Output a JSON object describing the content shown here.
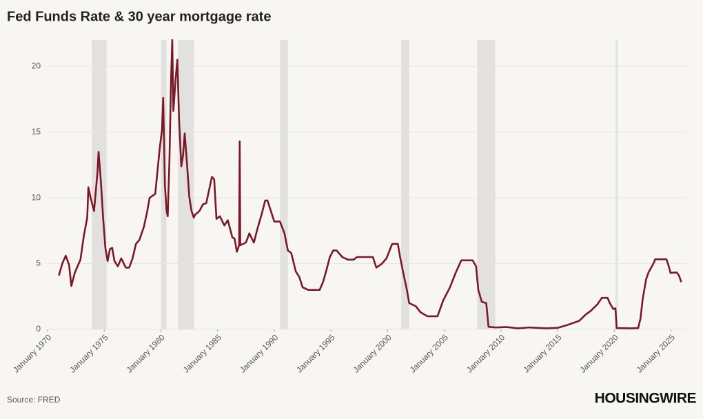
{
  "chart_data": {
    "type": "line",
    "title": "Fed Funds Rate & 30 year mortgage rate",
    "source": "Source: FRED",
    "brand": "HOUSINGWIRE",
    "color": "#7b1828",
    "grid": true,
    "recession_color": "#e2e1df",
    "recessions": [
      [
        1973.9,
        1975.2
      ],
      [
        1980.0,
        1980.5
      ],
      [
        1981.5,
        1982.9
      ],
      [
        1990.5,
        1991.2
      ],
      [
        2001.2,
        2001.9
      ],
      [
        2007.9,
        2009.5
      ],
      [
        2020.1,
        2020.3
      ]
    ],
    "xlim": [
      1970,
      2026.3
    ],
    "xticks": [
      {
        "value": 1970,
        "label": "January 1970"
      },
      {
        "value": 1975,
        "label": "January 1975"
      },
      {
        "value": 1980,
        "label": "January 1980"
      },
      {
        "value": 1985,
        "label": "January 1985"
      },
      {
        "value": 1990,
        "label": "January 1990"
      },
      {
        "value": 1995,
        "label": "January 1995"
      },
      {
        "value": 2000,
        "label": "January 2000"
      },
      {
        "value": 2005,
        "label": "January 2005"
      },
      {
        "value": 2010,
        "label": "January 2010"
      },
      {
        "value": 2015,
        "label": "January 2015"
      },
      {
        "value": 2020,
        "label": "January 2020"
      },
      {
        "value": 2025,
        "label": "January 2025"
      }
    ],
    "ylim": [
      0,
      22
    ],
    "yticks": [
      0,
      5,
      10,
      15,
      20
    ],
    "x": [
      1971.0,
      1971.3,
      1971.6,
      1971.9,
      1972.1,
      1972.4,
      1972.7,
      1972.9,
      1973.2,
      1973.5,
      1973.6,
      1973.8,
      1974.1,
      1974.4,
      1974.5,
      1974.7,
      1974.9,
      1975.1,
      1975.3,
      1975.5,
      1975.7,
      1975.9,
      1976.2,
      1976.5,
      1976.9,
      1977.2,
      1977.5,
      1977.8,
      1978.1,
      1978.5,
      1978.8,
      1979.0,
      1979.5,
      1979.9,
      1980.1,
      1980.2,
      1980.35,
      1980.5,
      1980.6,
      1980.75,
      1980.9,
      1981.0,
      1981.1,
      1981.3,
      1981.45,
      1981.6,
      1981.8,
      1981.95,
      1982.1,
      1982.3,
      1982.5,
      1982.7,
      1982.9,
      1983.0,
      1983.4,
      1983.7,
      1984.0,
      1984.5,
      1984.7,
      1984.9,
      1985.2,
      1985.6,
      1985.9,
      1986.3,
      1986.5,
      1986.7,
      1986.9,
      1986.95,
      1987.0,
      1987.5,
      1987.8,
      1988.2,
      1988.5,
      1988.9,
      1989.2,
      1989.4,
      1989.7,
      1990.0,
      1990.5,
      1990.9,
      1991.2,
      1991.5,
      1991.9,
      1992.2,
      1992.5,
      1993.0,
      1993.5,
      1994.0,
      1994.3,
      1994.6,
      1994.9,
      1995.2,
      1995.5,
      1996.0,
      1996.5,
      1997.0,
      1997.3,
      1998.0,
      1998.7,
      1999.0,
      1999.5,
      1999.9,
      2000.4,
      2000.9,
      2001.1,
      2001.4,
      2001.7,
      2001.9,
      2002.5,
      2002.9,
      2003.5,
      2004.4,
      2004.9,
      2005.5,
      2006.0,
      2006.5,
      2007.5,
      2007.8,
      2008.0,
      2008.3,
      2008.7,
      2008.9,
      2009.5,
      2010.5,
      2011.5,
      2012.5,
      2014.0,
      2015.0,
      2015.9,
      2016.9,
      2017.5,
      2017.9,
      2018.5,
      2018.9,
      2019.4,
      2019.6,
      2019.9,
      2020.1,
      2020.2,
      2021.5,
      2022.1,
      2022.3,
      2022.5,
      2022.8,
      2023.0,
      2023.5,
      2023.6,
      2024.6,
      2024.8,
      2024.95,
      2025.5,
      2025.7,
      2025.9
    ],
    "values": [
      4.1,
      5.0,
      5.6,
      4.9,
      3.3,
      4.3,
      4.9,
      5.3,
      7.1,
      8.5,
      10.8,
      10.0,
      9.0,
      11.9,
      13.5,
      11.3,
      8.5,
      6.2,
      5.2,
      6.1,
      6.2,
      5.2,
      4.8,
      5.4,
      4.7,
      4.7,
      5.4,
      6.5,
      6.8,
      7.8,
      9.0,
      10.0,
      10.3,
      13.8,
      15.2,
      17.6,
      11.0,
      9.0,
      8.6,
      12.8,
      19.1,
      22.0,
      16.6,
      19.1,
      20.5,
      16.0,
      12.4,
      13.2,
      14.9,
      12.6,
      10.1,
      9.0,
      8.5,
      8.7,
      9.0,
      9.5,
      9.6,
      11.6,
      11.4,
      8.4,
      8.6,
      7.9,
      8.3,
      7.0,
      6.9,
      5.9,
      6.4,
      14.3,
      6.4,
      6.6,
      7.3,
      6.6,
      7.6,
      8.8,
      9.8,
      9.8,
      9.0,
      8.2,
      8.2,
      7.3,
      6.0,
      5.8,
      4.4,
      4.0,
      3.2,
      3.0,
      3.0,
      3.0,
      3.6,
      4.5,
      5.5,
      6.0,
      6.0,
      5.5,
      5.3,
      5.3,
      5.5,
      5.5,
      5.5,
      4.7,
      5.0,
      5.4,
      6.5,
      6.5,
      5.5,
      4.2,
      3.0,
      2.0,
      1.75,
      1.3,
      1.0,
      1.0,
      2.2,
      3.2,
      4.3,
      5.25,
      5.25,
      4.8,
      3.0,
      2.1,
      2.0,
      0.2,
      0.15,
      0.18,
      0.08,
      0.15,
      0.08,
      0.12,
      0.35,
      0.65,
      1.15,
      1.4,
      1.9,
      2.4,
      2.4,
      2.0,
      1.55,
      1.6,
      0.1,
      0.08,
      0.1,
      0.8,
      2.3,
      3.8,
      4.3,
      5.1,
      5.33,
      5.33,
      4.8,
      4.3,
      4.33,
      4.1,
      3.6
    ]
  }
}
